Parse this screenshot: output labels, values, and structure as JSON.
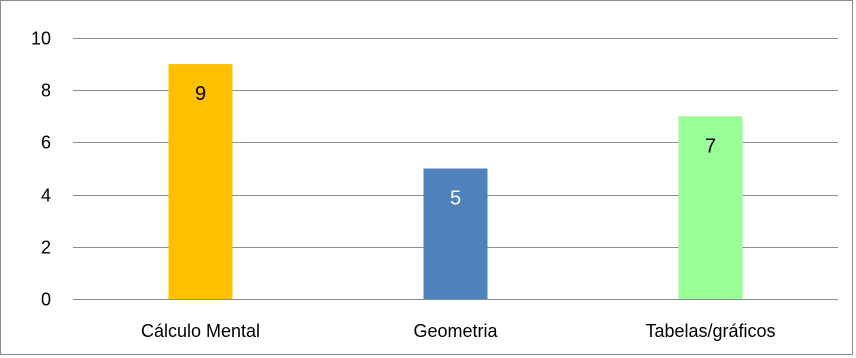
{
  "chart_data": {
    "type": "bar",
    "categories": [
      "Cálculo Mental",
      "Geometria",
      "Tabelas/gráficos"
    ],
    "values": [
      9,
      5,
      7
    ],
    "colors": [
      "#FFC000",
      "#4F81BD",
      "#99FF99"
    ],
    "data_label_colors": [
      "#000000",
      "#FFFFFF",
      "#000000"
    ],
    "ylim": [
      0,
      10
    ],
    "yticks": [
      0,
      2,
      4,
      6,
      8,
      10
    ],
    "grid": true,
    "legend": "none",
    "title": "",
    "xlabel": "",
    "ylabel": ""
  }
}
